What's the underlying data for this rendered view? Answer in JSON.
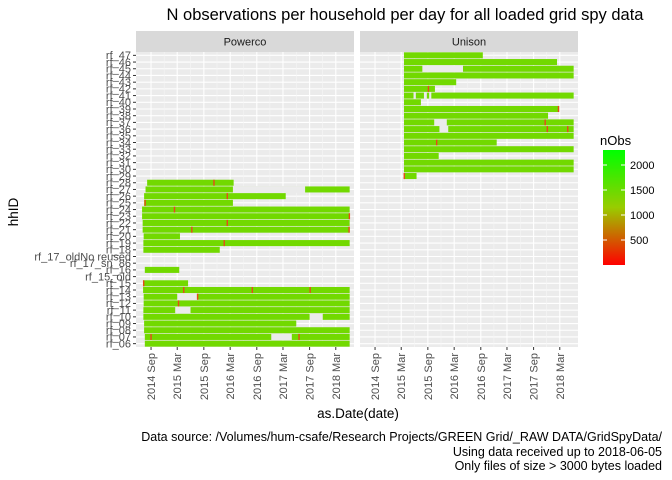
{
  "chart_data": {
    "type": "heatmap",
    "title": "N observations per household per day for all loaded grid spy data",
    "xlabel": "as.Date(date)",
    "ylabel": "hhID",
    "panels": [
      "Powerco",
      "Unison"
    ],
    "x_ticks": [
      "2014 Sep",
      "2015 Mar",
      "2015 Sep",
      "2016 Mar",
      "2016 Sep",
      "2017 Mar",
      "2017 Sep",
      "2018 Mar"
    ],
    "x_tick_dates": [
      "2014-09-01",
      "2015-03-01",
      "2015-09-01",
      "2016-03-01",
      "2016-09-01",
      "2017-03-01",
      "2017-09-01",
      "2018-03-01"
    ],
    "x_range": [
      "2014-05-20",
      "2018-07-05"
    ],
    "y_categories": [
      "rf_06",
      "rf_07",
      "rf_08",
      "rf_09",
      "rf_10",
      "rf_11",
      "rf_12",
      "rf_13",
      "rf_14",
      "rf_15",
      "rf_15_old",
      "rf_16",
      "rf_17_sn_86",
      "rf_17_oldNo reused",
      "rf_18",
      "rf_19",
      "rf_20",
      "rf_21",
      "rf_22",
      "rf_23",
      "rf_24",
      "rf_25",
      "rf_26",
      "rf_27",
      "rf_28",
      "rf_29",
      "rf_30",
      "rf_31",
      "rf_32",
      "rf_33",
      "rf_34",
      "rf_35",
      "rf_36",
      "rf_37",
      "rf_38",
      "rf_39",
      "rf_40",
      "rf_41",
      "rf_42",
      "rf_43",
      "rf_44",
      "rf_45",
      "rf_46",
      "rf_47"
    ],
    "legend": {
      "title": "nObs",
      "ticks": [
        500,
        1000,
        1500,
        2000
      ],
      "range": [
        0,
        2300
      ],
      "colors": [
        "#ff0000",
        "#99cc00",
        "#00ff00"
      ],
      "placement": "right"
    },
    "typical_nObs": 1440,
    "series": [
      {
        "name": "rf_06",
        "panel": "Powerco",
        "start": "2014-07-20",
        "end": "2018-06-05",
        "gaps": []
      },
      {
        "name": "rf_07",
        "panel": "Powerco",
        "start": "2014-07-20",
        "end": "2018-06-05",
        "gaps": [
          [
            "2016-12-10",
            "2017-05-01"
          ]
        ]
      },
      {
        "name": "rf_08",
        "panel": "Powerco",
        "start": "2014-07-15",
        "end": "2018-06-05",
        "gaps": []
      },
      {
        "name": "rf_09",
        "panel": "Powerco",
        "start": "2014-07-15",
        "end": "2017-06-01",
        "gaps": []
      },
      {
        "name": "rf_10",
        "panel": "Powerco",
        "start": "2014-07-10",
        "end": "2018-06-05",
        "gaps": [
          [
            "2017-09-01",
            "2017-12-01"
          ]
        ]
      },
      {
        "name": "rf_11",
        "panel": "Powerco",
        "start": "2014-07-10",
        "end": "2018-06-05",
        "gaps": [
          [
            "2015-02-15",
            "2015-06-01"
          ]
        ]
      },
      {
        "name": "rf_12",
        "panel": "Powerco",
        "start": "2014-07-12",
        "end": "2018-06-05",
        "gaps": []
      },
      {
        "name": "rf_13",
        "panel": "Powerco",
        "start": "2014-07-12",
        "end": "2018-06-05",
        "gaps": [
          [
            "2015-03-01",
            "2015-07-15"
          ]
        ]
      },
      {
        "name": "rf_14",
        "panel": "Powerco",
        "start": "2014-07-08",
        "end": "2018-06-05",
        "gaps": []
      },
      {
        "name": "rf_15",
        "panel": "Powerco",
        "start": "2014-07-08",
        "end": "2015-05-15",
        "gaps": []
      },
      {
        "name": "rf_15_old",
        "panel": "Powerco",
        "start": null,
        "end": null,
        "gaps": []
      },
      {
        "name": "rf_16",
        "panel": "Powerco",
        "start": "2014-07-20",
        "end": "2015-03-15",
        "gaps": []
      },
      {
        "name": "rf_17_sn_86",
        "panel": "Powerco",
        "start": null,
        "end": null,
        "gaps": []
      },
      {
        "name": "rf_17_oldNo reused",
        "panel": "Powerco",
        "start": null,
        "end": null,
        "gaps": []
      },
      {
        "name": "rf_18",
        "panel": "Powerco",
        "start": "2014-07-10",
        "end": "2015-12-20",
        "gaps": []
      },
      {
        "name": "rf_19",
        "panel": "Powerco",
        "start": "2014-07-10",
        "end": "2018-06-05",
        "gaps": []
      },
      {
        "name": "rf_20",
        "panel": "Powerco",
        "start": "2014-07-12",
        "end": "2015-03-20",
        "gaps": []
      },
      {
        "name": "rf_21",
        "panel": "Powerco",
        "start": "2014-07-05",
        "end": "2018-06-05",
        "gaps": []
      },
      {
        "name": "rf_22",
        "panel": "Powerco",
        "start": "2014-07-05",
        "end": "2018-06-05",
        "gaps": []
      },
      {
        "name": "rf_23",
        "panel": "Powerco",
        "start": "2014-07-01",
        "end": "2018-06-05",
        "gaps": []
      },
      {
        "name": "rf_24",
        "panel": "Powerco",
        "start": "2014-07-01",
        "end": "2018-06-05",
        "gaps": []
      },
      {
        "name": "rf_25",
        "panel": "Powerco",
        "start": "2014-07-15",
        "end": "2016-03-20",
        "gaps": []
      },
      {
        "name": "rf_26",
        "panel": "Powerco",
        "start": "2014-07-15",
        "end": "2017-03-20",
        "gaps": []
      },
      {
        "name": "rf_27",
        "panel": "Powerco",
        "start": "2014-07-25",
        "end": "2018-06-05",
        "gaps": [
          [
            "2016-03-20",
            "2017-08-01"
          ]
        ]
      },
      {
        "name": "rf_28",
        "panel": "Powerco",
        "start": "2014-08-05",
        "end": "2016-03-25",
        "gaps": []
      },
      {
        "name": "rf_29",
        "panel": "Unison",
        "start": "2015-03-20",
        "end": "2015-06-15",
        "gaps": []
      },
      {
        "name": "rf_30",
        "panel": "Unison",
        "start": "2015-03-20",
        "end": "2018-06-05",
        "gaps": []
      },
      {
        "name": "rf_31",
        "panel": "Unison",
        "start": "2015-03-20",
        "end": "2018-06-05",
        "gaps": []
      },
      {
        "name": "rf_32",
        "panel": "Unison",
        "start": "2015-03-20",
        "end": "2015-11-15",
        "gaps": []
      },
      {
        "name": "rf_33",
        "panel": "Unison",
        "start": "2015-03-20",
        "end": "2018-06-05",
        "gaps": []
      },
      {
        "name": "rf_34",
        "panel": "Unison",
        "start": "2015-03-20",
        "end": "2016-12-20",
        "gaps": []
      },
      {
        "name": "rf_35",
        "panel": "Unison",
        "start": "2015-03-20",
        "end": "2018-06-05",
        "gaps": []
      },
      {
        "name": "rf_36",
        "panel": "Unison",
        "start": "2015-03-20",
        "end": "2018-06-05",
        "gaps": [
          [
            "2015-11-20",
            "2016-01-20"
          ]
        ]
      },
      {
        "name": "rf_37",
        "panel": "Unison",
        "start": "2015-03-20",
        "end": "2018-06-05",
        "gaps": [
          [
            "2015-10-15",
            "2016-01-10"
          ]
        ]
      },
      {
        "name": "rf_38",
        "panel": "Unison",
        "start": "2015-03-20",
        "end": "2017-12-10",
        "gaps": []
      },
      {
        "name": "rf_39",
        "panel": "Unison",
        "start": "2015-03-20",
        "end": "2018-02-25",
        "gaps": []
      },
      {
        "name": "rf_40",
        "panel": "Unison",
        "start": "2015-03-20",
        "end": "2015-07-15",
        "gaps": []
      },
      {
        "name": "rf_41",
        "panel": "Unison",
        "start": "2015-03-20",
        "end": "2018-06-05",
        "gaps": [
          [
            "2015-05-25",
            "2015-06-10"
          ],
          [
            "2015-08-05",
            "2015-08-25"
          ],
          [
            "2015-09-10",
            "2015-09-25"
          ]
        ]
      },
      {
        "name": "rf_42",
        "panel": "Unison",
        "start": "2015-03-20",
        "end": "2015-10-20",
        "gaps": []
      },
      {
        "name": "rf_43",
        "panel": "Unison",
        "start": "2015-03-20",
        "end": "2016-03-15",
        "gaps": []
      },
      {
        "name": "rf_44",
        "panel": "Unison",
        "start": "2015-03-20",
        "end": "2018-06-05",
        "gaps": []
      },
      {
        "name": "rf_45",
        "panel": "Unison",
        "start": "2015-03-20",
        "end": "2018-06-05",
        "gaps": [
          [
            "2015-07-25",
            "2016-05-01"
          ]
        ]
      },
      {
        "name": "rf_46",
        "panel": "Unison",
        "start": "2015-03-20",
        "end": "2018-02-10",
        "gaps": []
      },
      {
        "name": "rf_47",
        "panel": "Unison",
        "start": "2015-03-20",
        "end": "2016-09-15",
        "gaps": []
      }
    ],
    "low_count_days": [
      {
        "hh": "rf_07",
        "date": "2014-09-01"
      },
      {
        "hh": "rf_07",
        "date": "2017-06-20"
      },
      {
        "hh": "rf_12",
        "date": "2015-03-10"
      },
      {
        "hh": "rf_13",
        "date": "2015-07-20"
      },
      {
        "hh": "rf_14",
        "date": "2015-04-15"
      },
      {
        "hh": "rf_14",
        "date": "2016-08-01"
      },
      {
        "hh": "rf_14",
        "date": "2017-09-05"
      },
      {
        "hh": "rf_15",
        "date": "2014-07-12"
      },
      {
        "hh": "rf_19",
        "date": "2016-01-20"
      },
      {
        "hh": "rf_21",
        "date": "2015-06-10"
      },
      {
        "hh": "rf_21",
        "date": "2018-06-01"
      },
      {
        "hh": "rf_22",
        "date": "2016-02-10"
      },
      {
        "hh": "rf_23",
        "date": "2018-06-03"
      },
      {
        "hh": "rf_24",
        "date": "2015-02-10"
      },
      {
        "hh": "rf_25",
        "date": "2014-07-22"
      },
      {
        "hh": "rf_26",
        "date": "2016-02-10"
      },
      {
        "hh": "rf_28",
        "date": "2015-11-10"
      },
      {
        "hh": "rf_29",
        "date": "2015-03-22"
      },
      {
        "hh": "rf_34",
        "date": "2015-11-01"
      },
      {
        "hh": "rf_36",
        "date": "2017-12-05"
      },
      {
        "hh": "rf_36",
        "date": "2018-04-25"
      },
      {
        "hh": "rf_37",
        "date": "2017-11-20"
      },
      {
        "hh": "rf_39",
        "date": "2018-02-20"
      },
      {
        "hh": "rf_42",
        "date": "2015-09-05"
      }
    ]
  },
  "caption": {
    "line1": "Data source: /Volumes/hum-csafe/Research Projects/GREEN Grid/_RAW DATA/GridSpyData/",
    "line2": "Using data received up to 2018-06-05",
    "line3": "Only files of size > 3000 bytes loaded"
  }
}
